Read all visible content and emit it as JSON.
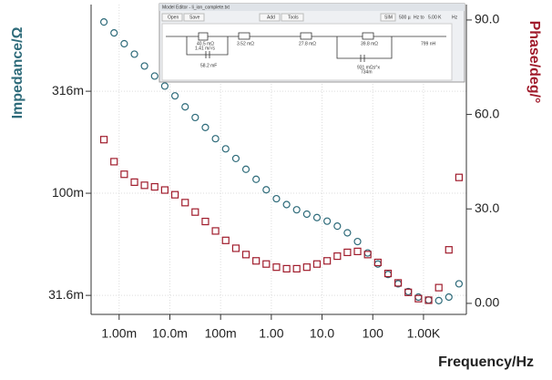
{
  "chart_data": {
    "type": "scatter",
    "x_label": "Frequency/Hz",
    "y_label": "Impedance/Ω",
    "y2_label": "Phase/deg/°",
    "x": [
      0.000501,
      0.000794,
      0.00126,
      0.002,
      0.00316,
      0.00501,
      0.00794,
      0.0126,
      0.02,
      0.0316,
      0.0501,
      0.0794,
      0.126,
      0.2,
      0.316,
      0.501,
      0.794,
      1.26,
      2,
      3.16,
      5.01,
      7.94,
      12.6,
      20,
      31.6,
      50.1,
      79.4,
      126,
      200,
      316,
      501,
      794,
      1260,
      2000,
      3160,
      5010
    ],
    "series": [
      {
        "color": "#2e6b7a",
        "marker": "circle",
        "axis": "y",
        "values": [
          0.69,
          0.61,
          0.54,
          0.48,
          0.42,
          0.375,
          0.335,
          0.3,
          0.265,
          0.235,
          0.21,
          0.185,
          0.165,
          0.148,
          0.131,
          0.117,
          0.104,
          0.094,
          0.088,
          0.083,
          0.079,
          0.076,
          0.073,
          0.069,
          0.064,
          0.058,
          0.051,
          0.045,
          0.04,
          0.036,
          0.033,
          0.031,
          0.03,
          0.0298,
          0.031,
          0.036
        ]
      },
      {
        "color": "#a01c2c",
        "marker": "square",
        "axis": "y2",
        "values": [
          52,
          45,
          41,
          38.5,
          37.5,
          37,
          36,
          34.5,
          32,
          29,
          26,
          23,
          20,
          17.5,
          15.5,
          13.5,
          12.5,
          11.5,
          11,
          11,
          11.5,
          12.5,
          13.5,
          15,
          16.2,
          16.5,
          15.5,
          13,
          9.5,
          6.5,
          3.5,
          1.5,
          1,
          5,
          17,
          40
        ]
      }
    ],
    "xscale": "log",
    "yscale": "log",
    "xlim": [
      0.00028,
      7000
    ],
    "ylim": [
      0.0255,
      0.84
    ],
    "y2lim": [
      -3.5,
      94.9
    ],
    "xticks": [
      {
        "value": 0.001,
        "label": "1.00m"
      },
      {
        "value": 0.01,
        "label": "10.0m"
      },
      {
        "value": 0.1,
        "label": "100m"
      },
      {
        "value": 1,
        "label": "1.00"
      },
      {
        "value": 10,
        "label": "10.0"
      },
      {
        "value": 100,
        "label": "100"
      },
      {
        "value": 1000,
        "label": "1.00K"
      }
    ],
    "yticks": [
      {
        "value": 0.0316,
        "label": "31.6m"
      },
      {
        "value": 0.1,
        "label": "100m"
      },
      {
        "value": 0.316,
        "label": "316m"
      }
    ],
    "y2ticks": [
      {
        "value": 0,
        "label": "0.00"
      },
      {
        "value": 30,
        "label": "30.0"
      },
      {
        "value": 60,
        "label": "60.0"
      },
      {
        "value": 90,
        "label": "90.0"
      }
    ],
    "grid": true
  },
  "inset": {
    "title": "Model Editor - li_ion_complete.txt",
    "buttons": [
      "Open",
      "Save",
      "Add",
      "Tools",
      "SIM"
    ],
    "range": [
      "500 µ",
      "Hz to",
      "5.00 K",
      "Hz"
    ],
    "components": [
      "40.5 mΩ",
      "1.41 m/√s",
      "3.52 mΩ",
      "27.8 mΩ",
      "39.8 mΩ",
      "799 nH",
      "58.2 mF",
      "931 mΩs^x",
      "734m"
    ]
  }
}
